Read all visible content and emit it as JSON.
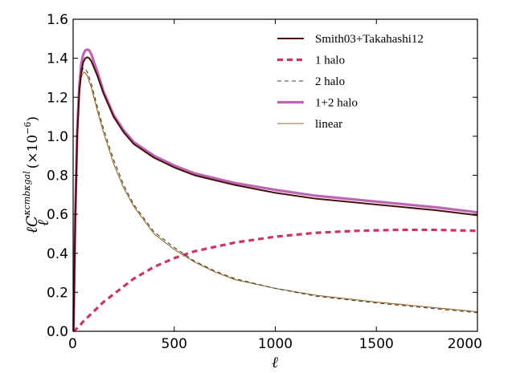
{
  "chart_data": {
    "type": "line",
    "xlabel": "ℓ",
    "ylabel": "ℓC",
    "ylabel_sub": "ℓ",
    "ylabel_sup": "κcmbκgal",
    "ylabel_unit": "(×10",
    "ylabel_exp": "−6",
    "ylabel_close": ")",
    "xlim": [
      0,
      2000
    ],
    "ylim": [
      0.0,
      1.6
    ],
    "x_ticks": [
      "0",
      "500",
      "1000",
      "1500",
      "2000"
    ],
    "y_ticks": [
      "0.0",
      "0.2",
      "0.4",
      "0.6",
      "0.8",
      "1.0",
      "1.2",
      "1.4",
      "1.6"
    ],
    "grid": false,
    "legend_position": "top-right",
    "series": [
      {
        "name": "Smith03+Takahashi12",
        "color": "#4a0c0c",
        "style": "solid",
        "x": [
          2,
          10,
          20,
          30,
          40,
          50,
          60,
          70,
          80,
          90,
          100,
          120,
          150,
          200,
          250,
          300,
          400,
          500,
          600,
          800,
          1000,
          1200,
          1500,
          1800,
          2000
        ],
        "y": [
          0.0,
          0.55,
          1.0,
          1.22,
          1.33,
          1.38,
          1.4,
          1.405,
          1.4,
          1.385,
          1.36,
          1.31,
          1.22,
          1.1,
          1.02,
          0.96,
          0.89,
          0.84,
          0.8,
          0.75,
          0.71,
          0.68,
          0.65,
          0.62,
          0.595
        ]
      },
      {
        "name": "1 halo",
        "color": "#cc3366",
        "style": "dashed",
        "x": [
          0,
          25,
          50,
          100,
          150,
          200,
          300,
          400,
          500,
          600,
          800,
          1000,
          1200,
          1400,
          1600,
          1800,
          2000
        ],
        "y": [
          0.0,
          0.02,
          0.05,
          0.1,
          0.15,
          0.19,
          0.27,
          0.33,
          0.375,
          0.41,
          0.455,
          0.485,
          0.505,
          0.515,
          0.52,
          0.52,
          0.515
        ]
      },
      {
        "name": "2 halo",
        "color": "#2e4a40",
        "style": "dashed",
        "x": [
          2,
          10,
          20,
          30,
          40,
          50,
          60,
          70,
          80,
          90,
          100,
          120,
          150,
          200,
          250,
          300,
          400,
          500,
          600,
          700,
          800,
          1000,
          1200,
          1500,
          1800,
          2000
        ],
        "y": [
          0.0,
          0.55,
          1.0,
          1.22,
          1.32,
          1.35,
          1.345,
          1.33,
          1.3,
          1.27,
          1.23,
          1.15,
          1.04,
          0.88,
          0.75,
          0.65,
          0.51,
          0.43,
          0.36,
          0.31,
          0.27,
          0.22,
          0.18,
          0.145,
          0.115,
          0.095
        ]
      },
      {
        "name": "1+2 halo",
        "color": "#bb66b0",
        "style": "solid",
        "x": [
          2,
          10,
          20,
          30,
          40,
          50,
          60,
          70,
          80,
          90,
          100,
          120,
          150,
          200,
          250,
          300,
          400,
          500,
          600,
          800,
          1000,
          1200,
          1500,
          1800,
          2000
        ],
        "y": [
          0.0,
          0.56,
          1.02,
          1.25,
          1.37,
          1.42,
          1.44,
          1.445,
          1.44,
          1.42,
          1.39,
          1.33,
          1.23,
          1.11,
          1.03,
          0.97,
          0.9,
          0.85,
          0.81,
          0.76,
          0.725,
          0.695,
          0.665,
          0.635,
          0.61
        ]
      },
      {
        "name": "linear",
        "color": "#a0641e",
        "style": "solid",
        "x": [
          2,
          10,
          20,
          30,
          40,
          50,
          60,
          70,
          80,
          90,
          100,
          120,
          150,
          200,
          250,
          300,
          400,
          500,
          600,
          700,
          800,
          1000,
          1200,
          1500,
          1800,
          2000
        ],
        "y": [
          0.0,
          0.55,
          0.99,
          1.21,
          1.3,
          1.33,
          1.325,
          1.31,
          1.28,
          1.25,
          1.21,
          1.13,
          1.02,
          0.86,
          0.735,
          0.64,
          0.5,
          0.42,
          0.355,
          0.305,
          0.265,
          0.22,
          0.185,
          0.15,
          0.12,
          0.1
        ]
      }
    ]
  }
}
